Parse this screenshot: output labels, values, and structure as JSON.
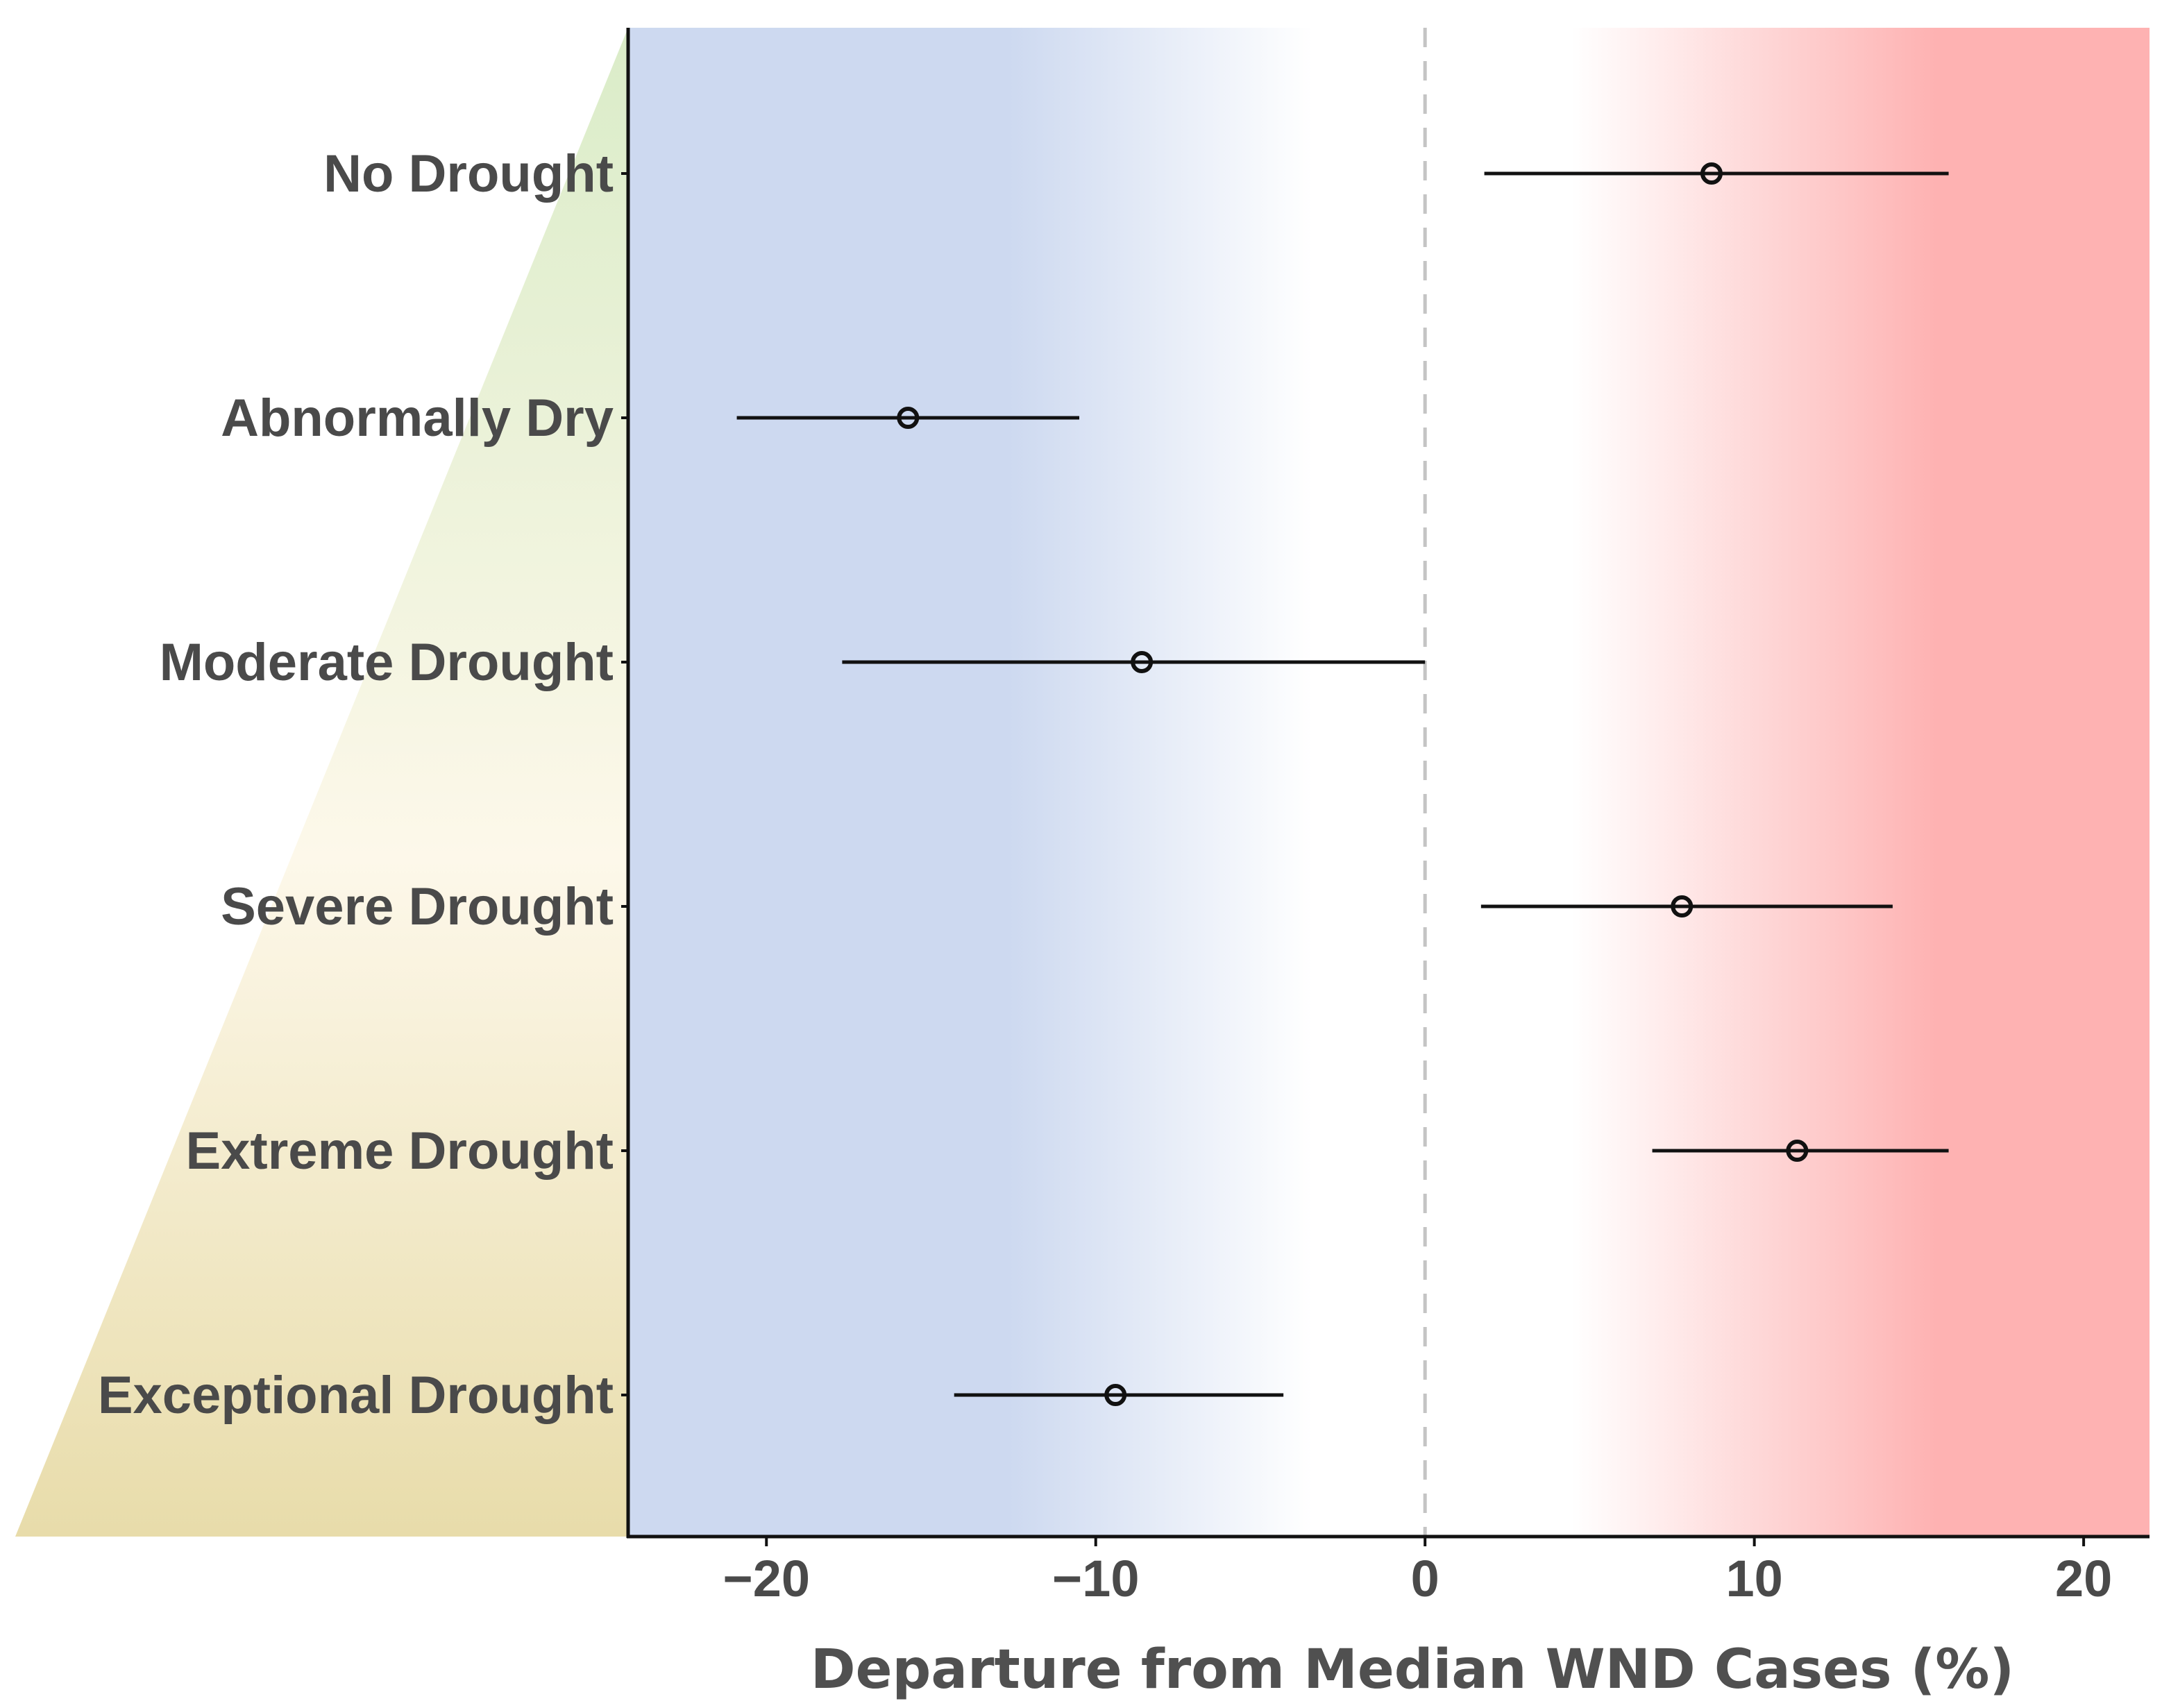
{
  "chart_data": {
    "type": "forest",
    "title": "",
    "xlabel": "Departure from Median WND Cases (%)",
    "ylabel": "",
    "xlim": [
      -24.2,
      22.0
    ],
    "xticks": [
      -20,
      -10,
      0,
      10,
      20
    ],
    "xtick_labels": [
      "−20",
      "−10",
      "0",
      "10",
      "20"
    ],
    "reference_line": 0,
    "categories": [
      "No Drought",
      "Abnormally Dry",
      "Moderate Drought",
      "Severe Drought",
      "Extreme Drought",
      "Exceptional Drought"
    ],
    "estimates": [
      8.7,
      -15.7,
      -8.6,
      7.8,
      11.3,
      -9.4
    ],
    "lower": [
      1.8,
      -20.9,
      -17.7,
      1.7,
      6.9,
      -14.3
    ],
    "upper": [
      15.9,
      -10.5,
      0.0,
      14.2,
      15.9,
      -4.3
    ],
    "colors": {
      "negative_band": "#cdd9f0",
      "positive_band": "#feb2b2",
      "wedge_top": "#daecc8",
      "wedge_mid": "#fdf8ea",
      "wedge_bottom": "#e8dcaa",
      "reference_line": "#c4c4c4",
      "marks": "#111111"
    }
  }
}
